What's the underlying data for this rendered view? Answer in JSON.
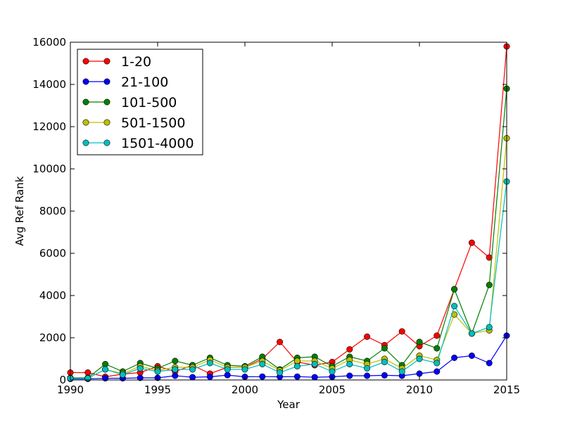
{
  "chart_data": {
    "type": "line",
    "title": "",
    "xlabel": "Year",
    "ylabel": "Avg Ref Rank",
    "xlim": [
      1990,
      2015
    ],
    "ylim": [
      0,
      16000
    ],
    "xticks": [
      1990,
      1995,
      2000,
      2005,
      2010,
      2015
    ],
    "yticks": [
      0,
      2000,
      4000,
      6000,
      8000,
      10000,
      12000,
      14000,
      16000
    ],
    "grid": false,
    "legend_position": "top-left",
    "x": [
      1990,
      1991,
      1992,
      1993,
      1994,
      1995,
      1996,
      1997,
      1998,
      1999,
      2000,
      2001,
      2002,
      2003,
      2004,
      2005,
      2006,
      2007,
      2008,
      2009,
      2010,
      2011,
      2012,
      2013,
      2014,
      2015
    ],
    "series": [
      {
        "name": "1-20",
        "color": "#ff0000",
        "values": [
          350,
          350,
          150,
          280,
          350,
          650,
          400,
          700,
          300,
          600,
          600,
          1000,
          1800,
          850,
          700,
          850,
          1450,
          2050,
          1650,
          2300,
          1600,
          2100,
          4300,
          6500,
          5800,
          15800
        ]
      },
      {
        "name": "21-100",
        "color": "#0000ff",
        "values": [
          50,
          50,
          80,
          80,
          100,
          100,
          200,
          130,
          150,
          230,
          150,
          160,
          150,
          160,
          130,
          150,
          200,
          200,
          220,
          200,
          300,
          400,
          1050,
          1150,
          800,
          2100
        ]
      },
      {
        "name": "101-500",
        "color": "#008000",
        "values": [
          100,
          100,
          750,
          400,
          800,
          550,
          900,
          700,
          1050,
          700,
          650,
          1100,
          500,
          1050,
          1100,
          650,
          1100,
          900,
          1500,
          700,
          1800,
          1500,
          4300,
          2200,
          4500,
          13800
        ]
      },
      {
        "name": "501-1500",
        "color": "#bfbf00",
        "values": [
          80,
          80,
          500,
          300,
          650,
          450,
          600,
          600,
          950,
          600,
          600,
          900,
          450,
          900,
          900,
          550,
          950,
          750,
          1000,
          550,
          1150,
          950,
          3100,
          2200,
          2350,
          11450
        ]
      },
      {
        "name": "1501-4000",
        "color": "#00bfbf",
        "values": [
          80,
          80,
          500,
          250,
          550,
          400,
          500,
          500,
          800,
          500,
          500,
          750,
          350,
          650,
          750,
          400,
          750,
          550,
          850,
          400,
          1000,
          800,
          3500,
          2200,
          2500,
          9400
        ]
      }
    ]
  }
}
